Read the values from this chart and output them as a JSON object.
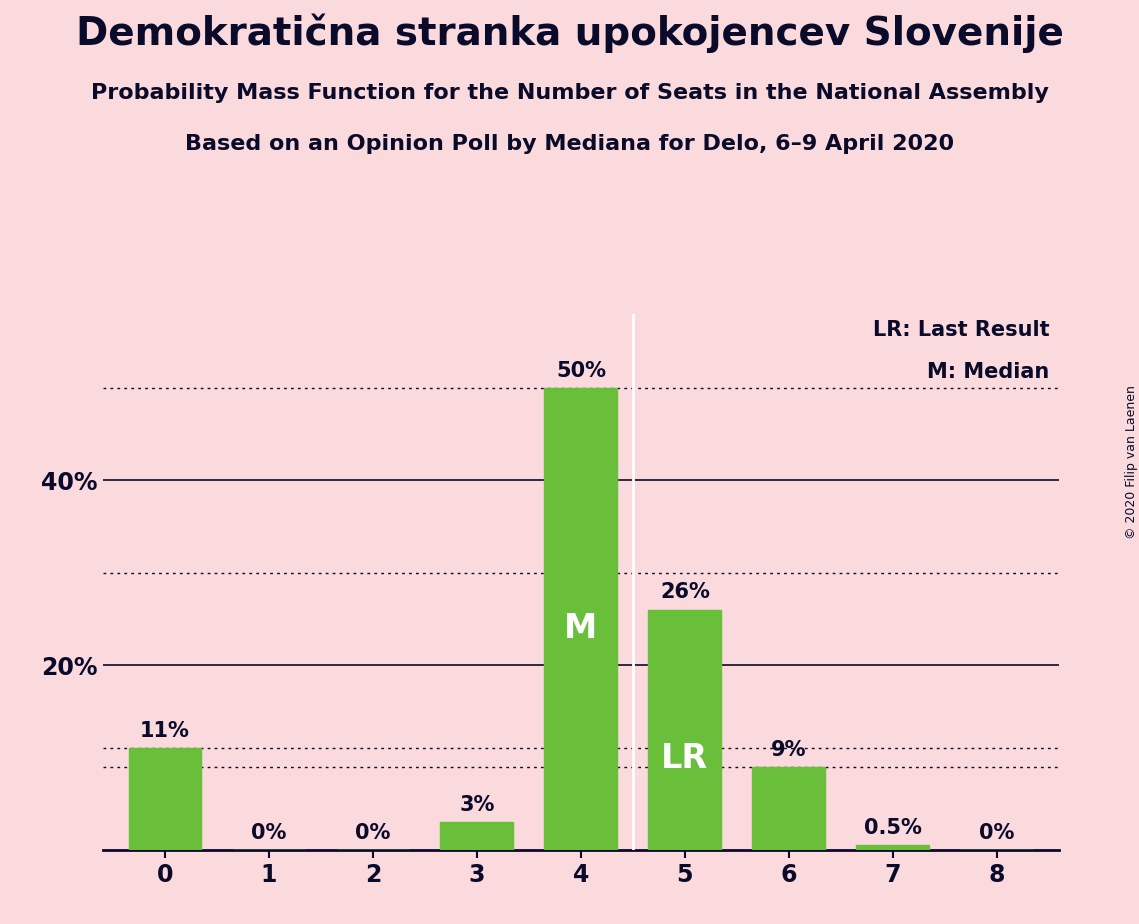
{
  "title": "Demokratična stranka upokojencev Slovenije",
  "subtitle1": "Probability Mass Function for the Number of Seats in the National Assembly",
  "subtitle2": "Based on an Opinion Poll by Mediana for Delo, 6–9 April 2020",
  "copyright": "© 2020 Filip van Laenen",
  "categories": [
    0,
    1,
    2,
    3,
    4,
    5,
    6,
    7,
    8
  ],
  "values": [
    11,
    0,
    0,
    3,
    50,
    26,
    9,
    0.5,
    0
  ],
  "bar_labels": [
    "11%",
    "0%",
    "0%",
    "3%",
    "50%",
    "26%",
    "9%",
    "0.5%",
    "0%"
  ],
  "bar_color": "#6abf3a",
  "background_color": "#fadadd",
  "text_color": "#0a0a2a",
  "median_bar": 4,
  "lr_bar": 5,
  "median_label": "M",
  "lr_label": "LR",
  "legend_lr": "LR: Last Result",
  "legend_m": "M: Median",
  "ylim": [
    0,
    58
  ],
  "dotted_lines": [
    50,
    30,
    11,
    9
  ],
  "solid_lines": [
    40,
    20
  ],
  "ytick_positions": [
    0,
    20,
    40
  ],
  "ytick_labels": [
    "",
    "20%",
    "40%"
  ]
}
